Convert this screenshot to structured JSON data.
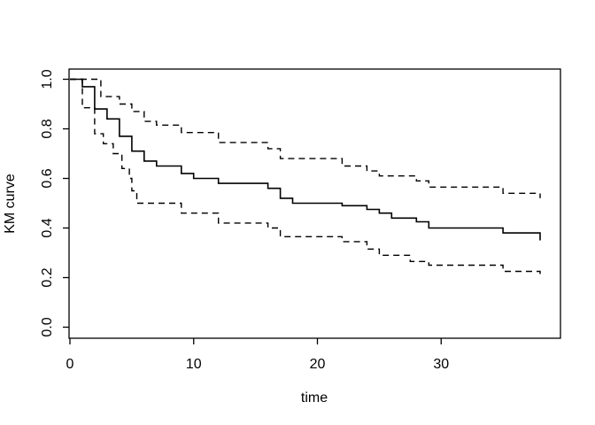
{
  "figure": {
    "background": "#ffffff",
    "line_color": "#000000"
  },
  "chart_data": {
    "type": "line",
    "subtype": "kaplan-meier-step",
    "title": "",
    "xlabel": "time",
    "ylabel": "KM curve",
    "xlim": [
      -0.071,
      39.643
    ],
    "ylim": [
      -0.0446,
      1.0411
    ],
    "grid": false,
    "legend": "none",
    "x_ticks": [
      {
        "value": 0,
        "label": "0"
      },
      {
        "value": 10,
        "label": "10"
      },
      {
        "value": 20,
        "label": "20"
      },
      {
        "value": 30,
        "label": "30"
      }
    ],
    "y_ticks": [
      {
        "value": 0.0,
        "label": "0.0"
      },
      {
        "value": 0.2,
        "label": "0.2"
      },
      {
        "value": 0.4,
        "label": "0.4"
      },
      {
        "value": 0.6,
        "label": "0.6"
      },
      {
        "value": 0.8,
        "label": "0.8"
      },
      {
        "value": 1.0,
        "label": "1.0"
      }
    ],
    "series": [
      {
        "name": "km-estimate",
        "style": "solid",
        "color": "#000000",
        "steps": [
          [
            0,
            1.0
          ],
          [
            1,
            0.97
          ],
          [
            2,
            0.88
          ],
          [
            3,
            0.84
          ],
          [
            4,
            0.77
          ],
          [
            5,
            0.71
          ],
          [
            6,
            0.67
          ],
          [
            7,
            0.65
          ],
          [
            9,
            0.62
          ],
          [
            10,
            0.6
          ],
          [
            12,
            0.58
          ],
          [
            16,
            0.56
          ],
          [
            17,
            0.52
          ],
          [
            18,
            0.5
          ],
          [
            22,
            0.49
          ],
          [
            24,
            0.475
          ],
          [
            25,
            0.46
          ],
          [
            26,
            0.44
          ],
          [
            28,
            0.425
          ],
          [
            29,
            0.4
          ],
          [
            35,
            0.38
          ],
          [
            38,
            0.35
          ]
        ]
      },
      {
        "name": "upper-confidence-band",
        "style": "dashed",
        "color": "#000000",
        "steps": [
          [
            0,
            1.0
          ],
          [
            2.5,
            0.93
          ],
          [
            4,
            0.9
          ],
          [
            5,
            0.87
          ],
          [
            6,
            0.83
          ],
          [
            7,
            0.815
          ],
          [
            9,
            0.785
          ],
          [
            12,
            0.745
          ],
          [
            16,
            0.72
          ],
          [
            17,
            0.68
          ],
          [
            22,
            0.65
          ],
          [
            24,
            0.63
          ],
          [
            25,
            0.61
          ],
          [
            28,
            0.59
          ],
          [
            29,
            0.565
          ],
          [
            35,
            0.54
          ],
          [
            38,
            0.52
          ]
        ]
      },
      {
        "name": "lower-confidence-band",
        "style": "dashed",
        "color": "#000000",
        "steps": [
          [
            0,
            1.0
          ],
          [
            1,
            0.885
          ],
          [
            2,
            0.78
          ],
          [
            2.7,
            0.74
          ],
          [
            3.5,
            0.7
          ],
          [
            4.2,
            0.64
          ],
          [
            4.8,
            0.6
          ],
          [
            5,
            0.55
          ],
          [
            5.4,
            0.5
          ],
          [
            9,
            0.46
          ],
          [
            12,
            0.42
          ],
          [
            16,
            0.4
          ],
          [
            17,
            0.365
          ],
          [
            22,
            0.345
          ],
          [
            24,
            0.315
          ],
          [
            25,
            0.29
          ],
          [
            27.5,
            0.265
          ],
          [
            29,
            0.25
          ],
          [
            35,
            0.225
          ],
          [
            38,
            0.21
          ]
        ]
      }
    ]
  }
}
